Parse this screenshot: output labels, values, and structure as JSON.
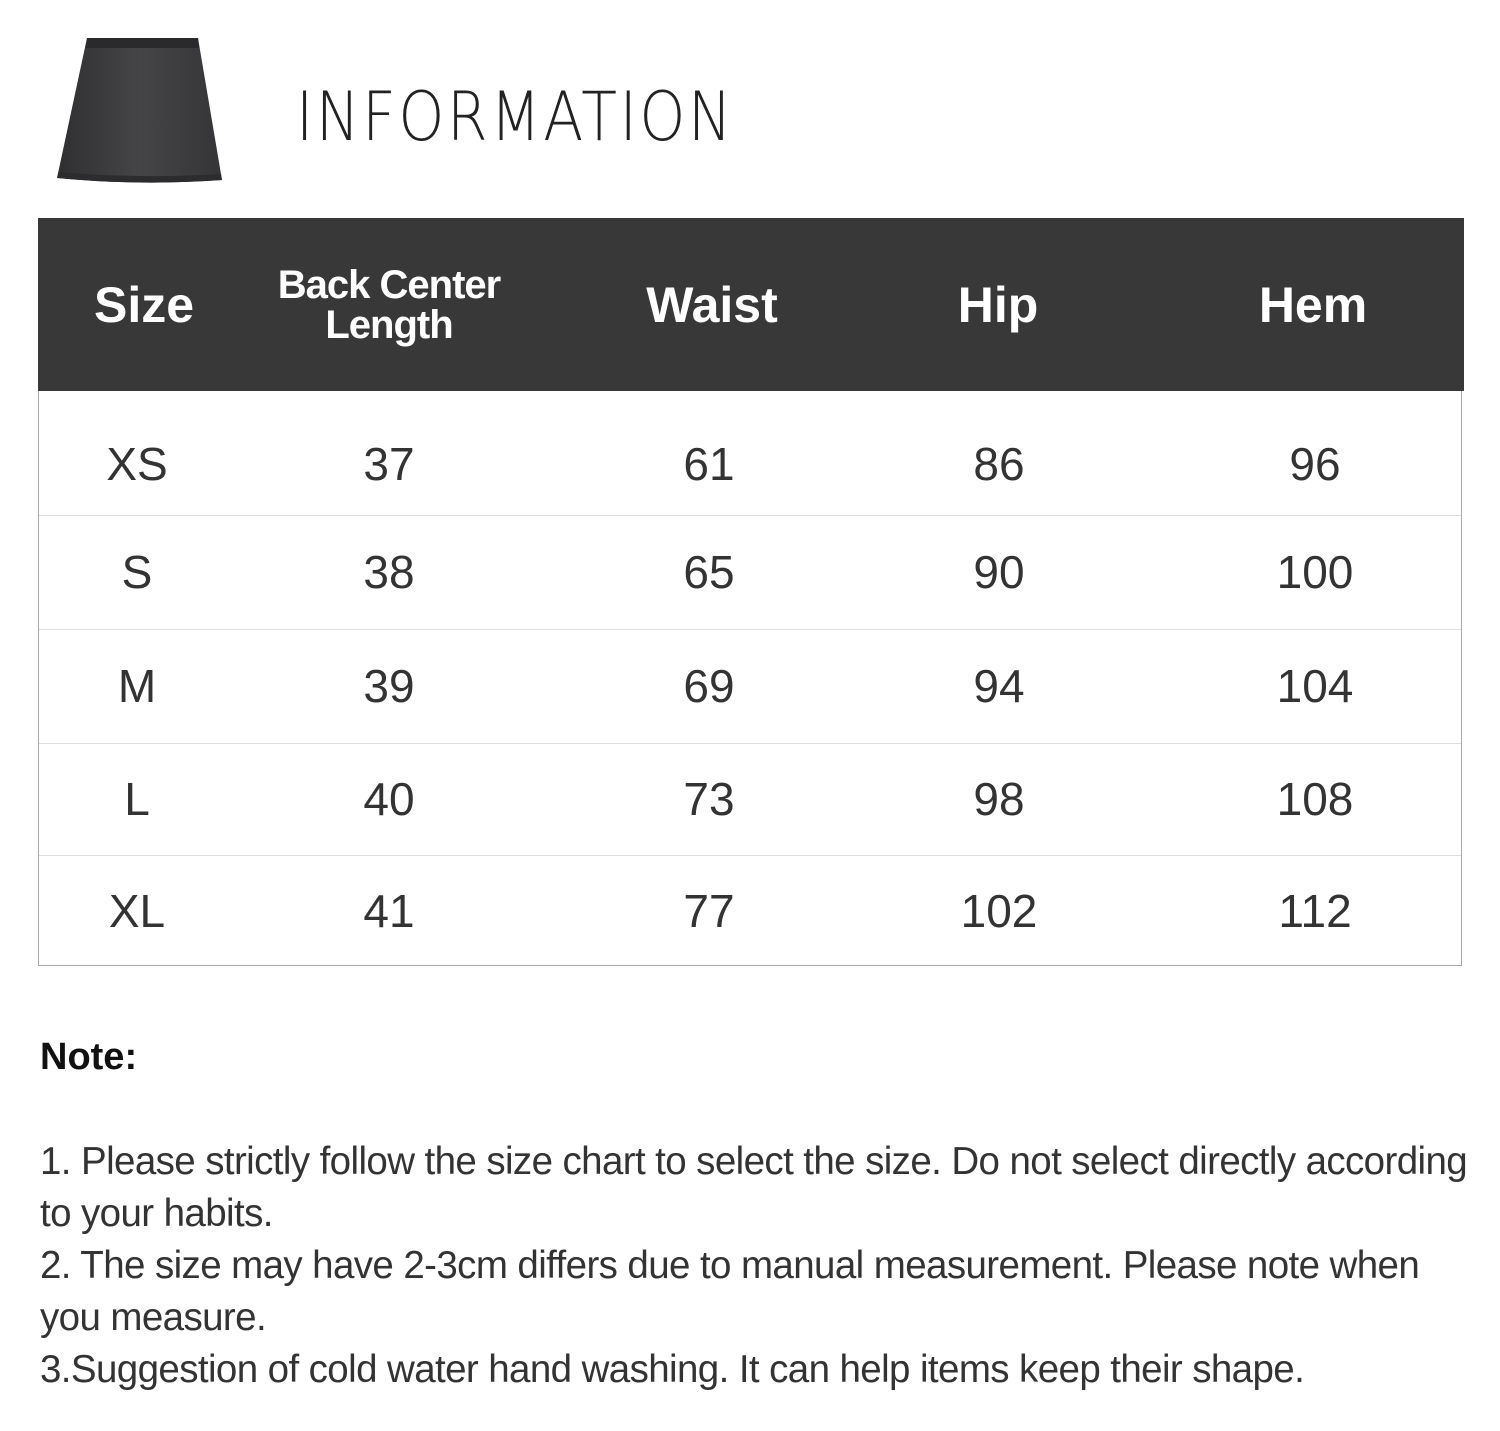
{
  "header": {
    "title": "INFORMATION",
    "product_image": "skirt-icon"
  },
  "table": {
    "columns": [
      "Size",
      "Back Center Length",
      "Waist",
      "Hip",
      "Hem"
    ],
    "column_lines": [
      [
        "Size"
      ],
      [
        "Back Center",
        "Length"
      ],
      [
        "Waist"
      ],
      [
        "Hip"
      ],
      [
        "Hem"
      ]
    ],
    "rows": [
      [
        "XS",
        "37",
        "61",
        "86",
        "96"
      ],
      [
        "S",
        "38",
        "65",
        "90",
        "100"
      ],
      [
        "M",
        "39",
        "69",
        "94",
        "104"
      ],
      [
        "L",
        "40",
        "73",
        "98",
        "108"
      ],
      [
        "XL",
        "41",
        "77",
        "102",
        "112"
      ]
    ]
  },
  "notes": {
    "heading": "Note:",
    "items": [
      "1. Please strictly follow the size chart  to select the size. Do not select directly according to your habits.",
      "2. The size may have 2-3cm differs due to manual measurement. Please note when you measure.",
      "3.Suggestion of cold water hand washing. It can help items keep their shape."
    ]
  },
  "colors": {
    "header_bg": "#383838",
    "header_text": "#ffffff",
    "body_text": "#333333",
    "skirt": "#3c3c3e"
  }
}
